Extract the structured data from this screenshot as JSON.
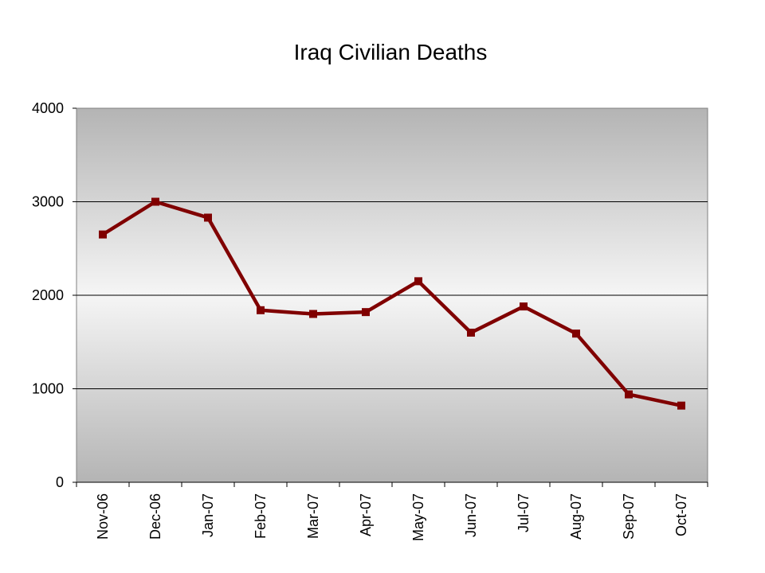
{
  "chart_data": {
    "type": "line",
    "title": "Iraq Civilian Deaths",
    "categories": [
      "Nov-06",
      "Dec-06",
      "Jan-07",
      "Feb-07",
      "Mar-07",
      "Apr-07",
      "May-07",
      "Jun-07",
      "Jul-07",
      "Aug-07",
      "Sep-07",
      "Oct-07"
    ],
    "series": [
      {
        "values": [
          2650,
          3000,
          2830,
          1840,
          1800,
          1820,
          2150,
          1600,
          1880,
          1590,
          940,
          820
        ]
      }
    ],
    "ylim": [
      0,
      4000
    ],
    "yticks": [
      "0",
      "1000",
      "2000",
      "3000",
      "4000"
    ],
    "grid": true,
    "legend": "none",
    "colors": {
      "line": "#800000",
      "plot_background_edge": "#b4b4b4",
      "plot_background_center": "#f5f5f5",
      "gridline": "#000000"
    }
  }
}
